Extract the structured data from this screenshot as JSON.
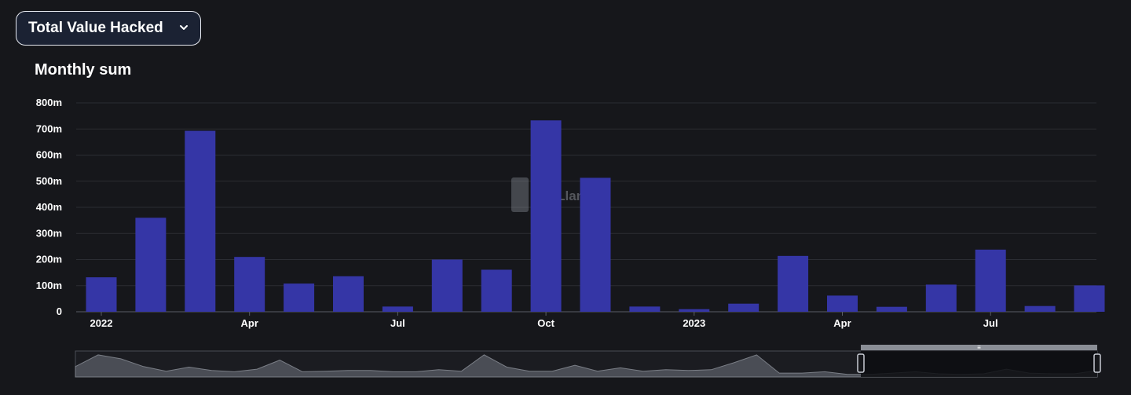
{
  "selector": {
    "label": "Total Value Hacked",
    "icon": "chevron-down-icon"
  },
  "chart_title": "Monthly sum",
  "watermark": "DefiLlama",
  "chart_data": {
    "type": "bar",
    "title": "Monthly sum",
    "xlabel": "",
    "ylabel": "",
    "ylim": [
      0,
      800
    ],
    "y_unit": "m",
    "y_ticks": [
      "0",
      "100m",
      "200m",
      "300m",
      "400m",
      "500m",
      "600m",
      "700m",
      "800m"
    ],
    "x_ticks": [
      {
        "label": "2022",
        "month_index": 0
      },
      {
        "label": "Apr",
        "month_index": 3
      },
      {
        "label": "Jul",
        "month_index": 6
      },
      {
        "label": "Oct",
        "month_index": 9
      },
      {
        "label": "2023",
        "month_index": 12
      },
      {
        "label": "Apr",
        "month_index": 15
      },
      {
        "label": "Jul",
        "month_index": 18
      }
    ],
    "categories": [
      "2022-01",
      "2022-02",
      "2022-03",
      "2022-04",
      "2022-05",
      "2022-06",
      "2022-07",
      "2022-08",
      "2022-09",
      "2022-10",
      "2022-11",
      "2022-12",
      "2023-01",
      "2023-02",
      "2023-03",
      "2023-04",
      "2023-05",
      "2023-06",
      "2023-07",
      "2023-08",
      "2023-09"
    ],
    "values": [
      132,
      360,
      693,
      210,
      108,
      136,
      20,
      200,
      161,
      733,
      513,
      20,
      10,
      31,
      214,
      62,
      19,
      104,
      238,
      22,
      101
    ],
    "grid": true,
    "bar_color": "#3536a6"
  },
  "overview_data": [
    0.4,
    0.85,
    0.7,
    0.4,
    0.22,
    0.38,
    0.25,
    0.2,
    0.3,
    0.65,
    0.2,
    0.22,
    0.25,
    0.25,
    0.2,
    0.2,
    0.28,
    0.22,
    0.85,
    0.38,
    0.22,
    0.22,
    0.45,
    0.22,
    0.35,
    0.22,
    0.28,
    0.25,
    0.28,
    0.55,
    0.85,
    0.15,
    0.15,
    0.2,
    0.1,
    0.1,
    0.15,
    0.2,
    0.12,
    0.1,
    0.12,
    0.3,
    0.15,
    0.12,
    0.12,
    0.25
  ]
}
